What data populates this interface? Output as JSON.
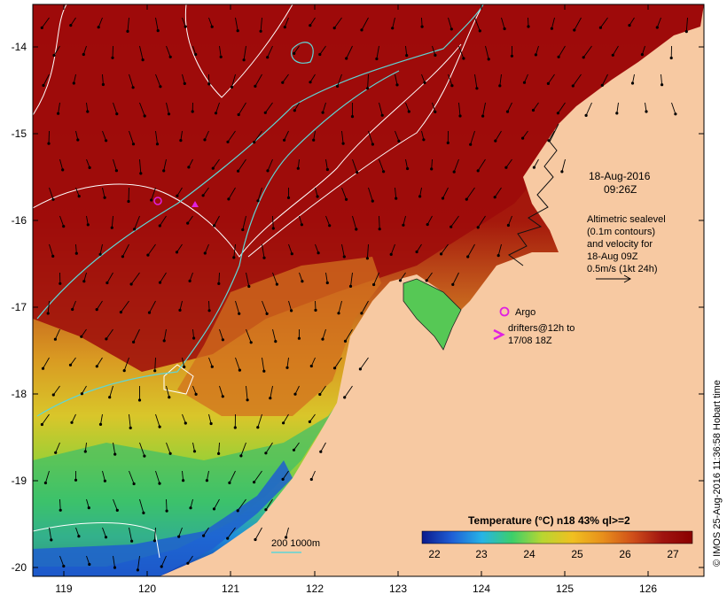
{
  "map": {
    "x_axis": {
      "ticks": [
        "119",
        "120",
        "121",
        "122",
        "123",
        "124",
        "125",
        "126"
      ]
    },
    "y_axis": {
      "ticks": [
        "-14",
        "-15",
        "-16",
        "-17",
        "-18",
        "-19",
        "-20"
      ]
    },
    "date_line1": "18-Aug-2016",
    "date_line2": "09:26Z",
    "altimetry_lines": [
      "Altimetric sealevel",
      "(0.1m contours)",
      "and velocity for",
      "18-Aug 09Z",
      "0.5m/s (1kt 24h)"
    ],
    "argo_label": "Argo",
    "drifters_line1": "drifters@12h to",
    "drifters_line2": "17/08 18Z",
    "depth_label": "200  1000m",
    "colorbar": {
      "title": "Temperature (°C) n18 43% ql>=2",
      "ticks": [
        "22",
        "23",
        "24",
        "25",
        "26",
        "27"
      ],
      "colors": [
        "#0a1a8c",
        "#1f5fd6",
        "#26b4e6",
        "#3ccf6a",
        "#b8d631",
        "#f0c020",
        "#e8901c",
        "#d0501a",
        "#a01410",
        "#8a0000"
      ]
    },
    "credit": "© IMOS 25-Aug-2016 11:36:58 Hobart time",
    "colors": {
      "land": "#f7c9a2",
      "warm_sea": "#9e0b0b",
      "contour": "#ffffff",
      "isobath": "#5fd6d6",
      "argo": "#e020e0"
    }
  }
}
